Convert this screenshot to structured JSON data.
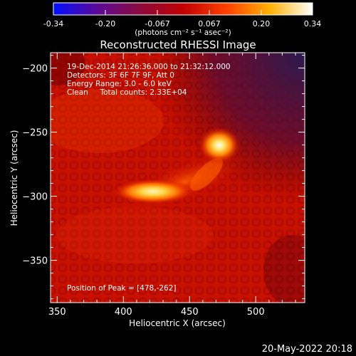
{
  "colorbar": {
    "ticks": [
      "-0.34",
      "-0.20",
      "-0.067",
      "0.067",
      "0.20",
      "0.34"
    ],
    "unit_label": "(photons cm⁻² s⁻¹ asec⁻²)",
    "range": [
      -0.34,
      0.34
    ],
    "stops": [
      "#0010ff",
      "#5a0a9a",
      "#8c0a3c",
      "#c00000",
      "#ff4000",
      "#ffb000",
      "#ffffff"
    ]
  },
  "chart_data": {
    "type": "heatmap",
    "title": "Reconstructed RHESSI Image",
    "xlabel": "Heliocentric X (arcsec)",
    "ylabel": "Heliocentric Y (arcsec)",
    "xlim": [
      345,
      537
    ],
    "ylim": [
      -383,
      -188
    ],
    "x_ticks": [
      "350",
      "400",
      "450",
      "500"
    ],
    "x_tick_values": [
      350,
      400,
      450,
      500
    ],
    "y_ticks": [
      "−200",
      "−250",
      "−300",
      "−350"
    ],
    "y_tick_values": [
      -200,
      -250,
      -300,
      -350
    ],
    "sources": [
      {
        "x": 478,
        "y": -262,
        "peak": 0.34
      },
      {
        "x": 425,
        "y": -297,
        "peak": 0.3
      }
    ]
  },
  "annotations": {
    "line1": "19-Dec-2014 21:26:36.000 to 21:32:12.000",
    "line2": "Detectors: 3F 6F 7F 9F, Att 0",
    "line3": "Energy Range: 3.0 - 6.0 keV",
    "line4": "Clean     Total counts: 2.33E+04",
    "peak": "Position of Peak = [478,-262]"
  },
  "footer": {
    "timestamp": "20-May-2022 20:18"
  }
}
